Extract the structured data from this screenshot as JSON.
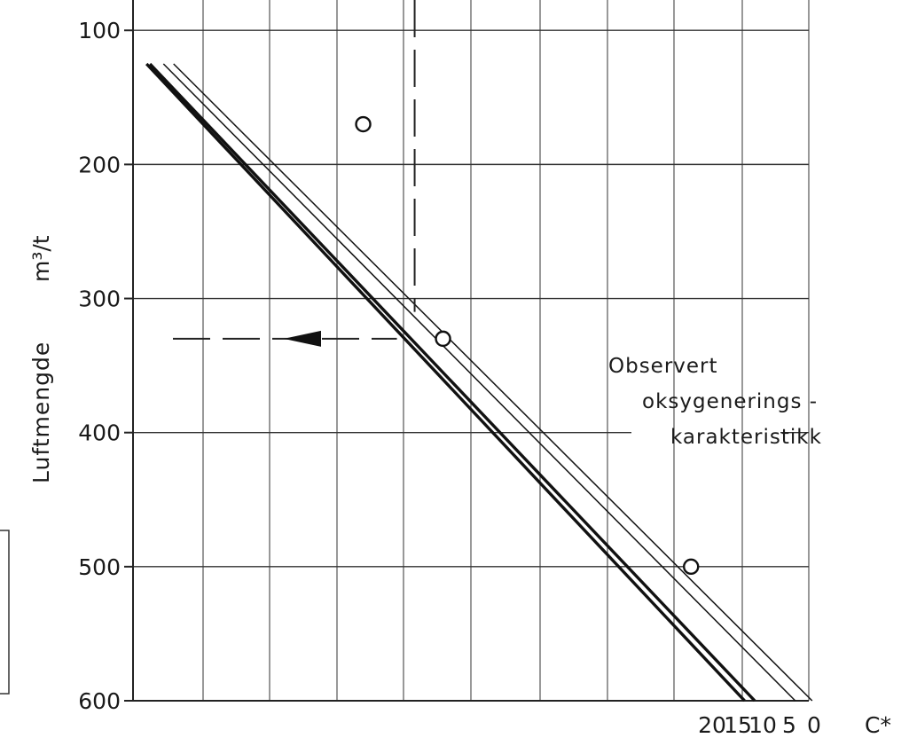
{
  "chart_data": {
    "type": "line",
    "ylabel": "Luftmengde",
    "yunit": "m³/t",
    "y_axis_inverted": true,
    "y_ticks": [
      "100",
      "200",
      "300",
      "400",
      "500",
      "600"
    ],
    "ylim": [
      80,
      600
    ],
    "grid": true,
    "bottom_axis_labels": [
      "20",
      "15",
      "10",
      "5",
      "0"
    ],
    "bottom_axis_unit": "C*",
    "series": [
      {
        "style": "thick",
        "points": [
          {
            "x": 20,
            "y": 125
          },
          {
            "x": 905,
            "y": 600
          }
        ]
      },
      {
        "style": "thick",
        "points": [
          {
            "x": 25,
            "y": 125
          },
          {
            "x": 920,
            "y": 600
          }
        ]
      },
      {
        "style": "thin",
        "points": [
          {
            "x": 45,
            "y": 125
          },
          {
            "x": 980,
            "y": 600
          }
        ]
      },
      {
        "style": "thin",
        "points": [
          {
            "x": 60,
            "y": 125
          },
          {
            "x": 1005,
            "y": 600
          }
        ]
      }
    ],
    "markers": [
      {
        "x": 86,
        "y": 170
      },
      {
        "x": 380,
        "y": 330
      },
      {
        "x": 747,
        "y": 500
      }
    ],
    "guides": [
      {
        "orientation": "vertical",
        "style": "dashed",
        "at_x": 380,
        "from_y": 80,
        "to_y": 310
      },
      {
        "orientation": "horizontal",
        "style": "dashed-arrow",
        "at_y": 330,
        "from_x": 380,
        "to_x": 0,
        "arrow": "left"
      }
    ],
    "annotation": {
      "lines": [
        "Observert",
        "oksygenerings -",
        "karakteristikk"
      ],
      "leader_y": 400
    }
  }
}
